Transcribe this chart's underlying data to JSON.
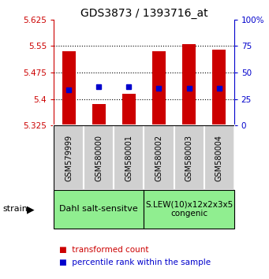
{
  "title": "GDS3873 / 1393716_at",
  "samples": [
    "GSM579999",
    "GSM580000",
    "GSM580001",
    "GSM580002",
    "GSM580003",
    "GSM580004"
  ],
  "red_values": [
    5.535,
    5.385,
    5.415,
    5.535,
    5.555,
    5.54
  ],
  "blue_values": [
    5.425,
    5.435,
    5.435,
    5.43,
    5.43,
    5.43
  ],
  "ylim_left": [
    5.325,
    5.625
  ],
  "ylim_right": [
    0,
    100
  ],
  "yticks_left": [
    5.325,
    5.4,
    5.475,
    5.55,
    5.625
  ],
  "yticks_right": [
    0,
    25,
    50,
    75,
    100
  ],
  "ytick_labels_left": [
    "5.325",
    "5.4",
    "5.475",
    "5.55",
    "5.625"
  ],
  "ytick_labels_right": [
    "0",
    "25",
    "50",
    "75",
    "100%"
  ],
  "hlines": [
    5.4,
    5.475,
    5.55
  ],
  "bar_bottom": 5.325,
  "bar_width": 0.45,
  "group1_indices": [
    0,
    1,
    2
  ],
  "group2_indices": [
    3,
    4,
    5
  ],
  "group1_label": "Dahl salt-sensitve",
  "group2_label": "S.LEW(10)x12x2x3x5\ncongenic",
  "group_bg_color": "#90EE90",
  "sample_bg_color": "#d0d0d0",
  "legend_red_label": "transformed count",
  "legend_blue_label": "percentile rank within the sample",
  "strain_label": "strain",
  "red_color": "#cc0000",
  "blue_color": "#0000cc",
  "title_fontsize": 10,
  "tick_fontsize": 7.5,
  "sample_fontsize": 7,
  "legend_fontsize": 7.5
}
